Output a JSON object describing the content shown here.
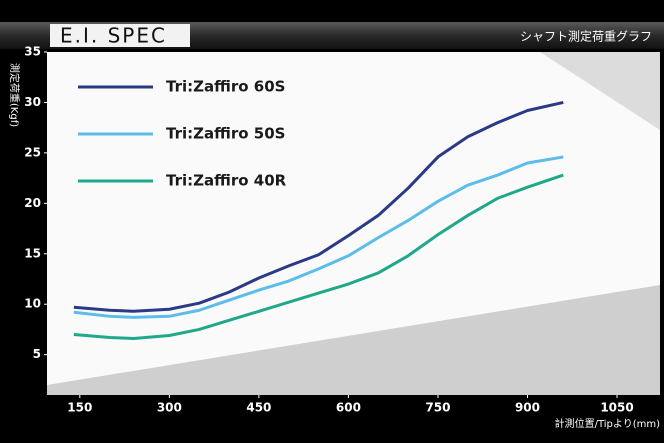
{
  "chart_data": {
    "type": "line",
    "title": "E.I. SPEC",
    "subtitle": "シャフト測定荷重グラフ",
    "y_label": "測定荷重(Kgf)",
    "x_label": "計測位置/Tipより(mm)",
    "x": [
      140,
      200,
      240,
      300,
      350,
      400,
      450,
      500,
      550,
      600,
      650,
      700,
      750,
      800,
      850,
      900,
      960
    ],
    "series": [
      {
        "name": "Tri:Zaffiro 60S",
        "color": "#2b3a85",
        "values": [
          9.7,
          9.4,
          9.3,
          9.5,
          10.1,
          11.2,
          12.6,
          13.8,
          14.9,
          16.8,
          18.8,
          21.5,
          24.6,
          26.6,
          28,
          29.2,
          30
        ]
      },
      {
        "name": "Tri:Zaffiro 50S",
        "color": "#5bbde8",
        "values": [
          9.2,
          8.8,
          8.7,
          8.8,
          9.4,
          10.4,
          11.4,
          12.3,
          13.5,
          14.8,
          16.6,
          18.3,
          20.2,
          21.8,
          22.8,
          24,
          24.6
        ]
      },
      {
        "name": "Tri:Zaffiro 40R",
        "color": "#1fa88a",
        "values": [
          7,
          6.7,
          6.6,
          6.9,
          7.5,
          8.4,
          9.3,
          10.2,
          11.1,
          12,
          13.1,
          14.8,
          16.9,
          18.8,
          20.5,
          21.6,
          22.8
        ]
      }
    ],
    "xlim": [
      95,
      1122
    ],
    "ylim": [
      1,
      35
    ],
    "xticks": [
      150,
      300,
      450,
      600,
      750,
      900,
      1050
    ],
    "yticks": [
      5,
      10,
      15,
      20,
      25,
      30,
      35
    ],
    "legend": "upper left"
  }
}
